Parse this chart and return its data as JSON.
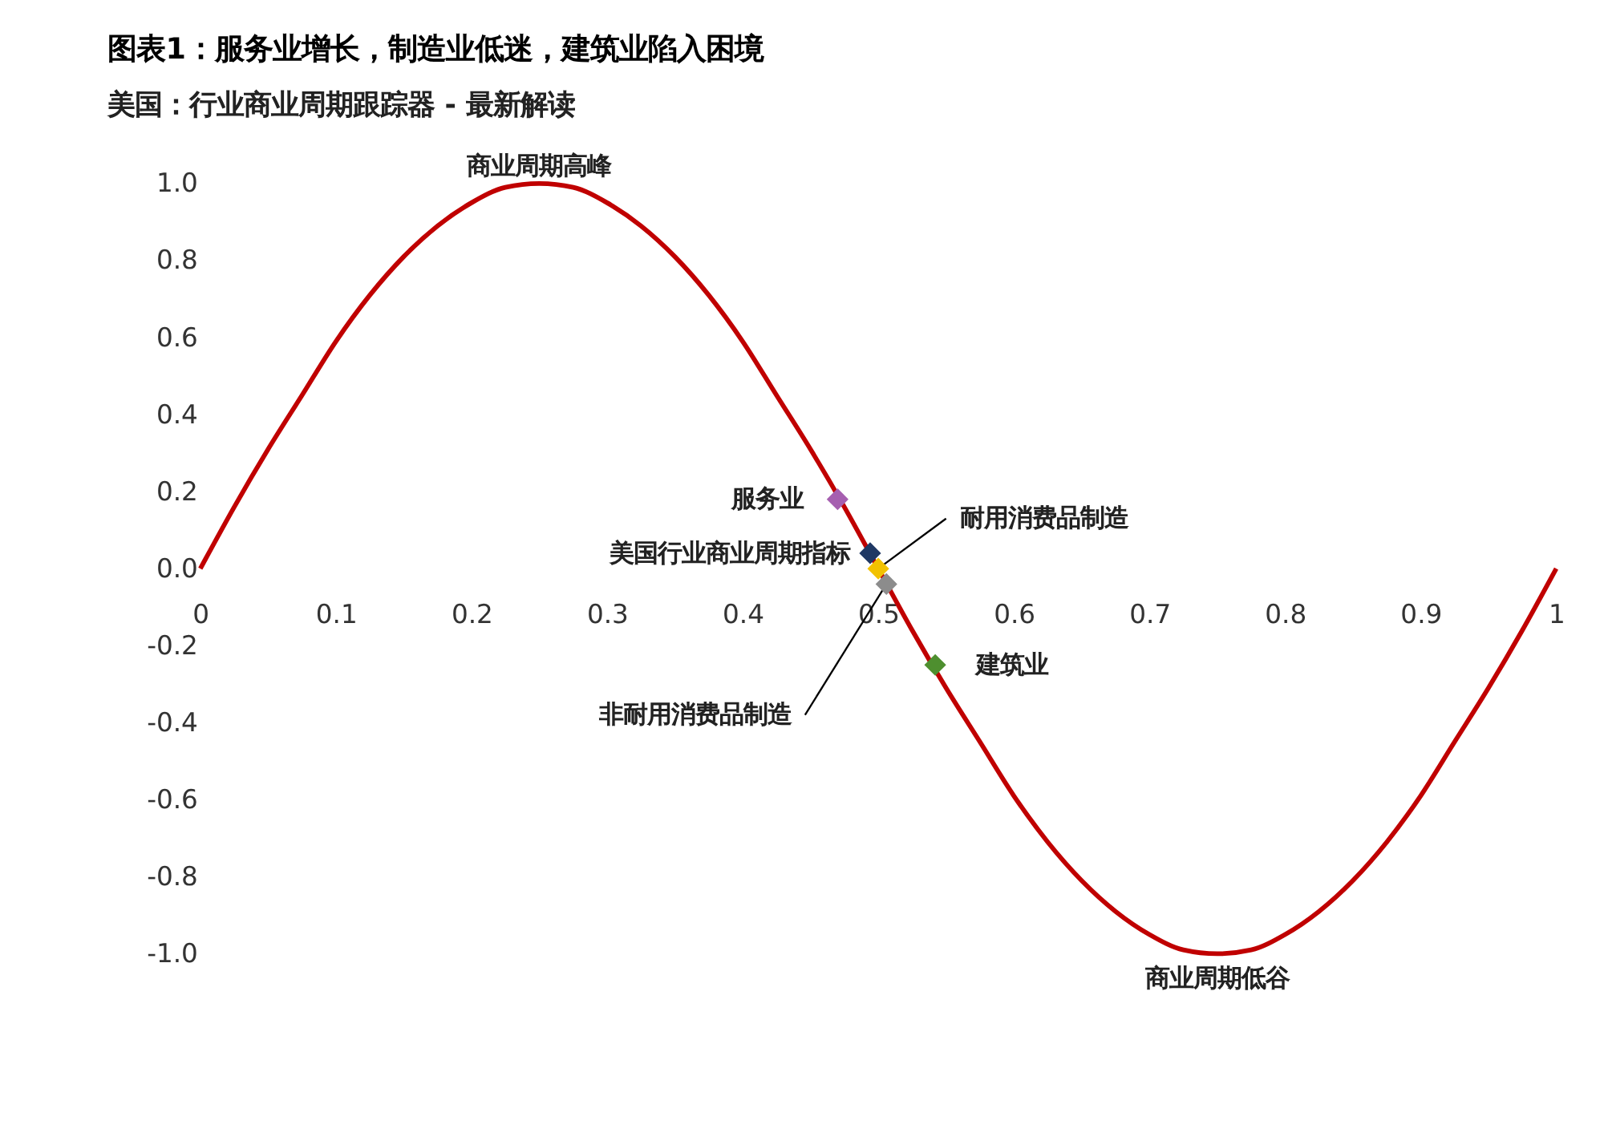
{
  "chart_data": {
    "type": "line",
    "title": "图表1：服务业增长，制造业低迷，建筑业陷入困境",
    "subtitle": "美国：行业商业周期跟踪器 - 最新解读",
    "xlim": [
      0,
      1
    ],
    "xticks": [
      0,
      0.1,
      0.2,
      0.3,
      0.4,
      0.5,
      0.6,
      0.7,
      0.8,
      0.9,
      1
    ],
    "ylim": [
      -1,
      1
    ],
    "yticks": [
      {
        "value": 1,
        "label": "1.0"
      },
      0.8,
      0.6,
      0.4,
      0.2,
      {
        "value": 0,
        "label": "0.0"
      },
      -0.2,
      -0.4,
      -0.6,
      -0.8,
      {
        "value": -1,
        "label": "-1.0"
      }
    ],
    "grid": false,
    "series": [
      {
        "color": "#c00000",
        "line_style": "solid",
        "marker": "none",
        "x": [
          0,
          0.025,
          0.05,
          0.075,
          0.1,
          0.125,
          0.15,
          0.175,
          0.2,
          0.225,
          0.25,
          0.275,
          0.3,
          0.325,
          0.35,
          0.375,
          0.4,
          0.425,
          0.45,
          0.475,
          0.5,
          0.525,
          0.55,
          0.575,
          0.6,
          0.625,
          0.65,
          0.675,
          0.7,
          0.725,
          0.75,
          0.775,
          0.8,
          0.825,
          0.85,
          0.875,
          0.9,
          0.925,
          0.95,
          0.975,
          1
        ],
        "values": [
          0,
          0.16,
          0.31,
          0.45,
          0.59,
          0.71,
          0.81,
          0.89,
          0.95,
          0.99,
          1.0,
          0.99,
          0.95,
          0.89,
          0.81,
          0.71,
          0.59,
          0.45,
          0.31,
          0.16,
          0,
          -0.16,
          -0.31,
          -0.45,
          -0.59,
          -0.71,
          -0.81,
          -0.89,
          -0.95,
          -0.99,
          -1.0,
          -0.99,
          -0.95,
          -0.89,
          -0.81,
          -0.71,
          -0.59,
          -0.45,
          -0.31,
          -0.16,
          0
        ]
      },
      {
        "type": "scatter",
        "name": "服务业",
        "color": "#a65fb0",
        "marker": "diamond",
        "x": [
          0.47
        ],
        "values": [
          0.18
        ]
      },
      {
        "type": "scatter",
        "name": "美国行业商业周期指标",
        "color": "#1f3864",
        "marker": "diamond",
        "x": [
          0.494
        ],
        "values": [
          0.04
        ]
      },
      {
        "type": "scatter",
        "name": "耐用消费品制造",
        "color": "#f2c200",
        "marker": "diamond",
        "x": [
          0.5
        ],
        "values": [
          0.0
        ]
      },
      {
        "type": "scatter",
        "name": "非耐用消费品制造",
        "color": "#8c8c8c",
        "marker": "diamond",
        "x": [
          0.506
        ],
        "values": [
          -0.04
        ]
      },
      {
        "type": "scatter",
        "name": "建筑业",
        "color": "#4e8f2f",
        "marker": "diamond",
        "x": [
          0.542
        ],
        "values": [
          -0.25
        ]
      }
    ],
    "annotations": [
      {
        "text": "商业周期高峰",
        "x": 0.25,
        "y": 1.0
      },
      {
        "text": "商业周期低谷",
        "x": 0.75,
        "y": -1.0
      }
    ]
  }
}
